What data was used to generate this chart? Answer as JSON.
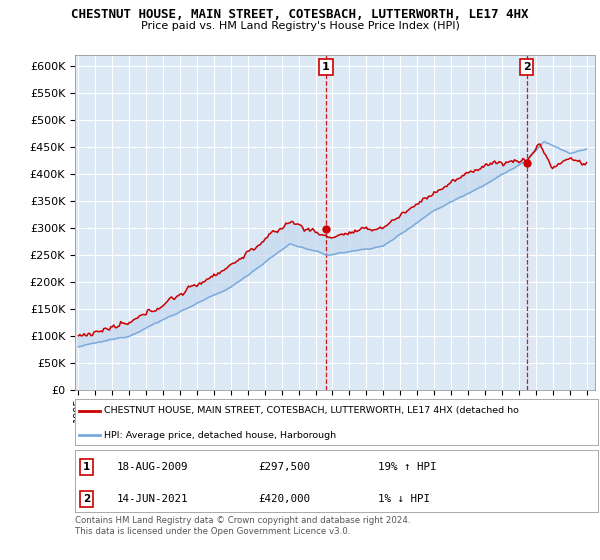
{
  "title": "CHESTNUT HOUSE, MAIN STREET, COTESBACH, LUTTERWORTH, LE17 4HX",
  "subtitle": "Price paid vs. HM Land Registry's House Price Index (HPI)",
  "ylabel_ticks": [
    "£0",
    "£50K",
    "£100K",
    "£150K",
    "£200K",
    "£250K",
    "£300K",
    "£350K",
    "£400K",
    "£450K",
    "£500K",
    "£550K",
    "£600K"
  ],
  "ylim": [
    0,
    620000
  ],
  "ytick_vals": [
    0,
    50000,
    100000,
    150000,
    200000,
    250000,
    300000,
    350000,
    400000,
    450000,
    500000,
    550000,
    600000
  ],
  "bg_color": "#dce9f5",
  "grid_color": "#ffffff",
  "red_color": "#cc0000",
  "blue_color": "#7aaadd",
  "fill_color": "#c5d8ee",
  "marker1_year": 2009.622,
  "marker1_val": 297500,
  "marker2_year": 2021.458,
  "marker2_val": 420000,
  "legend_red": "CHESTNUT HOUSE, MAIN STREET, COTESBACH, LUTTERWORTH, LE17 4HX (detached ho",
  "legend_blue": "HPI: Average price, detached house, Harborough",
  "note1_num": "1",
  "note1_date": "18-AUG-2009",
  "note1_price": "£297,500",
  "note1_pct": "19% ↑ HPI",
  "note2_num": "2",
  "note2_date": "14-JUN-2021",
  "note2_price": "£420,000",
  "note2_pct": "1% ↓ HPI",
  "copyright": "Contains HM Land Registry data © Crown copyright and database right 2024.\nThis data is licensed under the Open Government Licence v3.0.",
  "x_start_year": 1995,
  "x_end_year": 2025
}
